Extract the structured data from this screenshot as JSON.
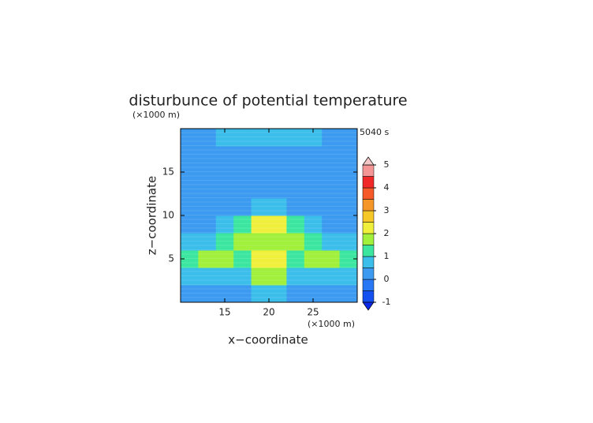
{
  "chart_data": {
    "type": "contour",
    "title": "disturbunce of potential temperature",
    "time_label": "5040 s",
    "x_label": "x−coordinate",
    "y_label": "z−coordinate",
    "x_unit": "(×1000 m)",
    "y_unit": "(×1000 m)",
    "xlim": [
      10,
      30
    ],
    "ylim": [
      0,
      20
    ],
    "xticks": [
      15,
      20,
      25
    ],
    "yticks": [
      5,
      10,
      15
    ],
    "x": [
      11,
      13,
      15,
      17,
      19,
      21,
      23,
      25,
      27,
      29
    ],
    "z": [
      1,
      3,
      5,
      7,
      9,
      11,
      13,
      15,
      17,
      19
    ],
    "values": [
      [
        0.3,
        0.3,
        0.4,
        0.4,
        0.8,
        0.8,
        0.4,
        0.4,
        0.3,
        0.3
      ],
      [
        0.8,
        0.7,
        0.6,
        0.7,
        1.6,
        1.6,
        0.7,
        0.6,
        0.7,
        0.8
      ],
      [
        1.4,
        1.5,
        1.6,
        1.3,
        2.2,
        2.2,
        1.3,
        1.6,
        1.5,
        1.4
      ],
      [
        0.7,
        0.9,
        1.3,
        1.8,
        1.6,
        1.6,
        1.8,
        1.3,
        0.9,
        0.7
      ],
      [
        0.2,
        0.3,
        0.6,
        1.2,
        2.3,
        2.3,
        1.2,
        0.6,
        0.3,
        0.2
      ],
      [
        0.3,
        0.2,
        0.3,
        0.4,
        0.6,
        0.6,
        0.4,
        0.3,
        0.2,
        0.3
      ],
      [
        0.2,
        0.2,
        0.2,
        0.2,
        0.2,
        0.2,
        0.2,
        0.2,
        0.2,
        0.2
      ],
      [
        0.2,
        0.2,
        0.2,
        0.2,
        0.2,
        0.2,
        0.2,
        0.2,
        0.2,
        0.2
      ],
      [
        0.2,
        0.2,
        0.2,
        0.2,
        0.2,
        0.2,
        0.2,
        0.2,
        0.2,
        0.2
      ],
      [
        0.3,
        0.4,
        0.5,
        0.6,
        0.6,
        0.6,
        0.6,
        0.5,
        0.4,
        0.3
      ]
    ],
    "levels": [
      -1,
      -0.5,
      0,
      0.5,
      1,
      1.5,
      2,
      2.5,
      3,
      3.5,
      4,
      4.5,
      5
    ],
    "colors": [
      "#0a28e6",
      "#1450f0",
      "#2878f5",
      "#3c9bf0",
      "#3cbeeb",
      "#3ce6a0",
      "#a0f03c",
      "#f0f03c",
      "#f5c828",
      "#f59628",
      "#f55a28",
      "#f02828",
      "#f59696",
      "#f5c8c8"
    ],
    "colorbar_ticks": [
      -1,
      0,
      1,
      2,
      3,
      4,
      5
    ]
  }
}
